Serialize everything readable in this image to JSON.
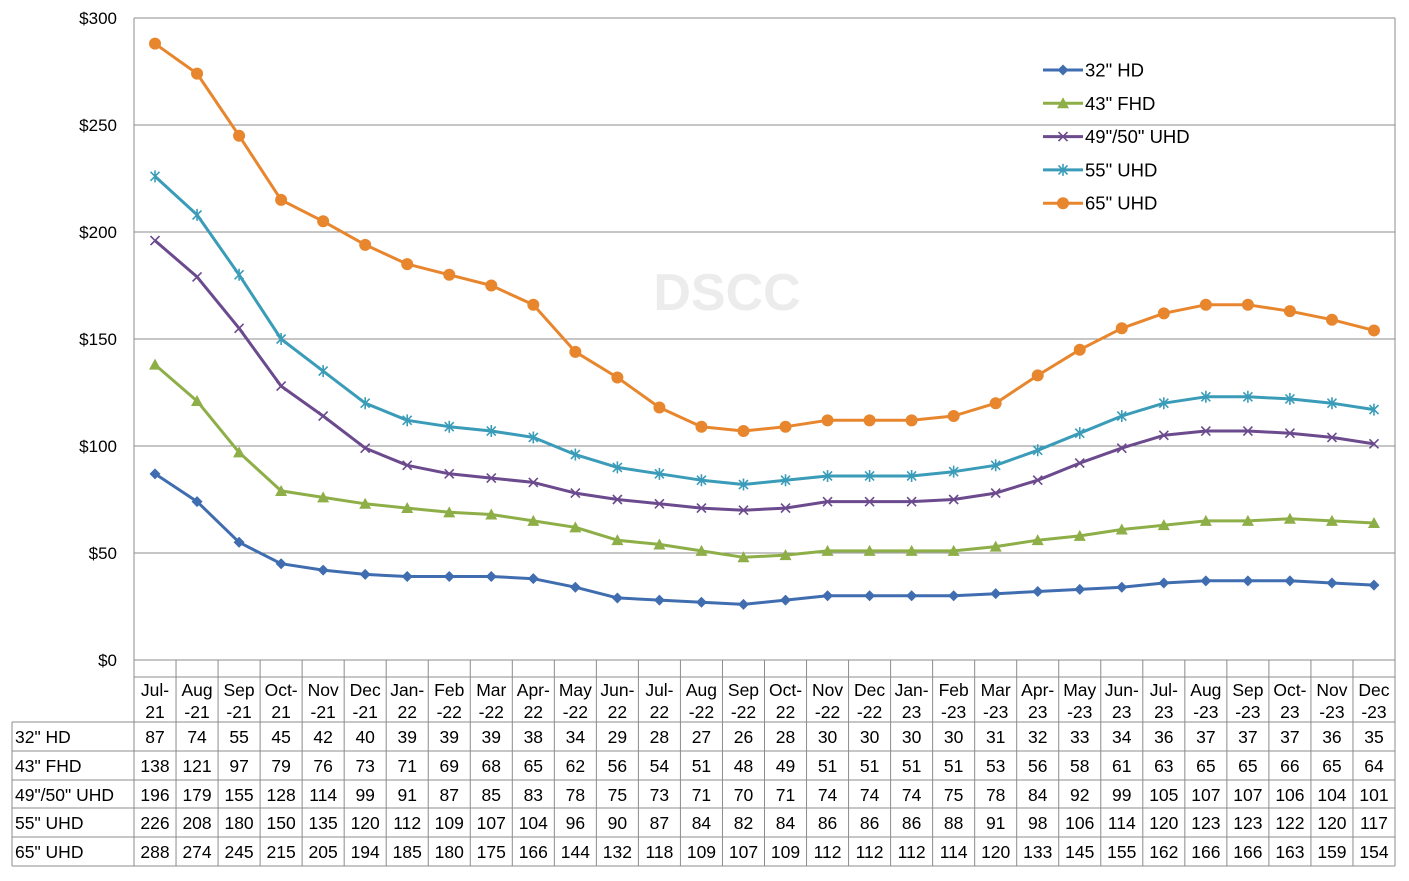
{
  "chart_data": {
    "type": "line",
    "title": "",
    "xlabel": "",
    "ylabel": "",
    "ylim": [
      0,
      300
    ],
    "yticks": [
      "$0",
      "$50",
      "$100",
      "$150",
      "$200",
      "$250",
      "$300"
    ],
    "ytick_values": [
      0,
      50,
      100,
      150,
      200,
      250,
      300
    ],
    "grid": true,
    "legend_position": "top-right",
    "watermark": "DSCC",
    "categories": [
      [
        "Jul-",
        "21"
      ],
      [
        "Aug",
        "-21"
      ],
      [
        "Sep",
        "-21"
      ],
      [
        "Oct-",
        "21"
      ],
      [
        "Nov",
        "-21"
      ],
      [
        "Dec",
        "-21"
      ],
      [
        "Jan-",
        "22"
      ],
      [
        "Feb",
        "-22"
      ],
      [
        "Mar",
        "-22"
      ],
      [
        "Apr-",
        "22"
      ],
      [
        "May",
        "-22"
      ],
      [
        "Jun-",
        "22"
      ],
      [
        "Jul-",
        "22"
      ],
      [
        "Aug",
        "-22"
      ],
      [
        "Sep",
        "-22"
      ],
      [
        "Oct-",
        "22"
      ],
      [
        "Nov",
        "-22"
      ],
      [
        "Dec",
        "-22"
      ],
      [
        "Jan-",
        "23"
      ],
      [
        "Feb",
        "-23"
      ],
      [
        "Mar",
        "-23"
      ],
      [
        "Apr-",
        "23"
      ],
      [
        "May",
        "-23"
      ],
      [
        "Jun-",
        "23"
      ],
      [
        "Jul-",
        "23"
      ],
      [
        "Aug",
        "-23"
      ],
      [
        "Sep",
        "-23"
      ],
      [
        "Oct-",
        "23"
      ],
      [
        "Nov",
        "-23"
      ],
      [
        "Dec",
        "-23"
      ]
    ],
    "series": [
      {
        "name": "32\" HD",
        "color": "#3f6db0",
        "marker": "diamond",
        "values": [
          87,
          74,
          55,
          45,
          42,
          40,
          39,
          39,
          39,
          38,
          34,
          29,
          28,
          27,
          26,
          28,
          30,
          30,
          30,
          30,
          31,
          32,
          33,
          34,
          36,
          37,
          37,
          37,
          36,
          35
        ]
      },
      {
        "name": "43\" FHD",
        "color": "#8eae48",
        "marker": "triangle",
        "values": [
          138,
          121,
          97,
          79,
          76,
          73,
          71,
          69,
          68,
          65,
          62,
          56,
          54,
          51,
          48,
          49,
          51,
          51,
          51,
          51,
          53,
          56,
          58,
          61,
          63,
          65,
          65,
          66,
          65,
          64
        ]
      },
      {
        "name": "49\"/50\" UHD",
        "color": "#6b4a8d",
        "marker": "x",
        "values": [
          196,
          179,
          155,
          128,
          114,
          99,
          91,
          87,
          85,
          83,
          78,
          75,
          73,
          71,
          70,
          71,
          74,
          74,
          74,
          75,
          78,
          84,
          92,
          99,
          105,
          107,
          107,
          106,
          104,
          101
        ]
      },
      {
        "name": "55\" UHD",
        "color": "#3a9cb8",
        "marker": "asterisk",
        "values": [
          226,
          208,
          180,
          150,
          135,
          120,
          112,
          109,
          107,
          104,
          96,
          90,
          87,
          84,
          82,
          84,
          86,
          86,
          86,
          88,
          91,
          98,
          106,
          114,
          120,
          123,
          123,
          122,
          120,
          117
        ]
      },
      {
        "name": "65\" UHD",
        "color": "#e8862e",
        "marker": "circle",
        "values": [
          288,
          274,
          245,
          215,
          205,
          194,
          185,
          180,
          175,
          166,
          144,
          132,
          118,
          109,
          107,
          109,
          112,
          112,
          112,
          114,
          120,
          133,
          145,
          155,
          162,
          166,
          166,
          163,
          159,
          154
        ]
      }
    ]
  }
}
